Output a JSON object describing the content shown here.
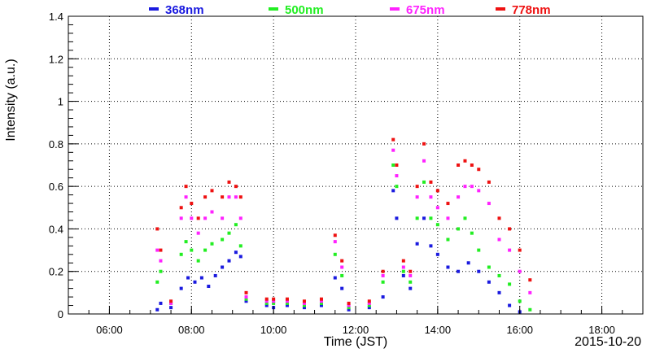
{
  "chart_data": {
    "type": "scatter",
    "title": "",
    "xlabel": "Time (JST)",
    "ylabel": "Intensity (a.u.)",
    "date_label": "2015-10-20",
    "xlim": [
      "05:00",
      "19:00"
    ],
    "ylim": [
      0,
      1.4
    ],
    "x_ticks": [
      "06:00",
      "08:00",
      "10:00",
      "12:00",
      "14:00",
      "16:00",
      "18:00"
    ],
    "y_ticks": [
      "0",
      "0.2",
      "0.4",
      "0.6",
      "0.8",
      "1",
      "1.2",
      "1.4"
    ],
    "grid": true,
    "legend_position": "top",
    "series": [
      {
        "name": "368nm",
        "color": "#1a1adf",
        "points": [
          [
            "07:10",
            0.02
          ],
          [
            "07:15",
            0.05
          ],
          [
            "07:30",
            0.03
          ],
          [
            "07:45",
            0.12
          ],
          [
            "07:55",
            0.17
          ],
          [
            "08:05",
            0.15
          ],
          [
            "08:15",
            0.17
          ],
          [
            "08:25",
            0.13
          ],
          [
            "08:35",
            0.18
          ],
          [
            "08:45",
            0.22
          ],
          [
            "08:55",
            0.25
          ],
          [
            "09:05",
            0.29
          ],
          [
            "09:12",
            0.27
          ],
          [
            "09:20",
            0.06
          ],
          [
            "09:50",
            0.04
          ],
          [
            "10:00",
            0.03
          ],
          [
            "10:20",
            0.04
          ],
          [
            "10:45",
            0.03
          ],
          [
            "11:10",
            0.04
          ],
          [
            "11:30",
            0.17
          ],
          [
            "11:40",
            0.12
          ],
          [
            "11:50",
            0.02
          ],
          [
            "12:20",
            0.03
          ],
          [
            "12:40",
            0.08
          ],
          [
            "12:55",
            0.58
          ],
          [
            "13:00",
            0.45
          ],
          [
            "13:10",
            0.18
          ],
          [
            "13:20",
            0.12
          ],
          [
            "13:30",
            0.33
          ],
          [
            "13:40",
            0.45
          ],
          [
            "13:50",
            0.32
          ],
          [
            "14:00",
            0.28
          ],
          [
            "14:15",
            0.22
          ],
          [
            "14:30",
            0.2
          ],
          [
            "14:45",
            0.24
          ],
          [
            "15:00",
            0.2
          ],
          [
            "15:15",
            0.15
          ],
          [
            "15:30",
            0.1
          ],
          [
            "15:45",
            0.04
          ],
          [
            "16:00",
            0.01
          ]
        ]
      },
      {
        "name": "500nm",
        "color": "#22ee22",
        "points": [
          [
            "07:10",
            0.15
          ],
          [
            "07:15",
            0.2
          ],
          [
            "07:30",
            0.05
          ],
          [
            "07:45",
            0.28
          ],
          [
            "07:52",
            0.34
          ],
          [
            "08:00",
            0.3
          ],
          [
            "08:10",
            0.25
          ],
          [
            "08:20",
            0.3
          ],
          [
            "08:30",
            0.33
          ],
          [
            "08:45",
            0.35
          ],
          [
            "08:55",
            0.38
          ],
          [
            "09:05",
            0.42
          ],
          [
            "09:12",
            0.32
          ],
          [
            "09:20",
            0.07
          ],
          [
            "09:50",
            0.05
          ],
          [
            "10:00",
            0.05
          ],
          [
            "10:20",
            0.05
          ],
          [
            "10:45",
            0.04
          ],
          [
            "11:10",
            0.05
          ],
          [
            "11:30",
            0.28
          ],
          [
            "11:40",
            0.18
          ],
          [
            "11:50",
            0.03
          ],
          [
            "12:20",
            0.04
          ],
          [
            "12:40",
            0.15
          ],
          [
            "12:55",
            0.7
          ],
          [
            "13:00",
            0.6
          ],
          [
            "13:10",
            0.2
          ],
          [
            "13:20",
            0.15
          ],
          [
            "13:30",
            0.45
          ],
          [
            "13:40",
            0.62
          ],
          [
            "13:50",
            0.45
          ],
          [
            "14:00",
            0.42
          ],
          [
            "14:15",
            0.35
          ],
          [
            "14:30",
            0.4
          ],
          [
            "14:40",
            0.45
          ],
          [
            "14:50",
            0.38
          ],
          [
            "15:00",
            0.3
          ],
          [
            "15:15",
            0.22
          ],
          [
            "15:30",
            0.18
          ],
          [
            "15:45",
            0.14
          ],
          [
            "16:00",
            0.06
          ],
          [
            "16:15",
            0.02
          ]
        ]
      },
      {
        "name": "675nm",
        "color": "#ff22ff",
        "points": [
          [
            "07:10",
            0.3
          ],
          [
            "07:15",
            0.25
          ],
          [
            "07:30",
            0.05
          ],
          [
            "07:45",
            0.45
          ],
          [
            "07:52",
            0.55
          ],
          [
            "08:00",
            0.45
          ],
          [
            "08:10",
            0.38
          ],
          [
            "08:20",
            0.45
          ],
          [
            "08:30",
            0.48
          ],
          [
            "08:45",
            0.45
          ],
          [
            "08:55",
            0.55
          ],
          [
            "09:05",
            0.55
          ],
          [
            "09:12",
            0.45
          ],
          [
            "09:20",
            0.08
          ],
          [
            "09:50",
            0.06
          ],
          [
            "10:00",
            0.06
          ],
          [
            "10:20",
            0.06
          ],
          [
            "10:45",
            0.05
          ],
          [
            "11:10",
            0.06
          ],
          [
            "11:30",
            0.34
          ],
          [
            "11:40",
            0.22
          ],
          [
            "11:50",
            0.04
          ],
          [
            "12:20",
            0.05
          ],
          [
            "12:40",
            0.18
          ],
          [
            "12:55",
            0.77
          ],
          [
            "13:00",
            0.65
          ],
          [
            "13:10",
            0.22
          ],
          [
            "13:20",
            0.18
          ],
          [
            "13:30",
            0.55
          ],
          [
            "13:40",
            0.72
          ],
          [
            "13:50",
            0.55
          ],
          [
            "14:00",
            0.5
          ],
          [
            "14:15",
            0.45
          ],
          [
            "14:30",
            0.55
          ],
          [
            "14:40",
            0.6
          ],
          [
            "14:50",
            0.6
          ],
          [
            "15:00",
            0.58
          ],
          [
            "15:15",
            0.52
          ],
          [
            "15:30",
            0.35
          ],
          [
            "15:45",
            0.3
          ],
          [
            "16:00",
            0.2
          ],
          [
            "16:15",
            0.1
          ]
        ]
      },
      {
        "name": "778nm",
        "color": "#ee1111",
        "points": [
          [
            "07:10",
            0.4
          ],
          [
            "07:15",
            0.3
          ],
          [
            "07:30",
            0.06
          ],
          [
            "07:45",
            0.5
          ],
          [
            "07:52",
            0.6
          ],
          [
            "08:00",
            0.52
          ],
          [
            "08:10",
            0.45
          ],
          [
            "08:20",
            0.55
          ],
          [
            "08:30",
            0.58
          ],
          [
            "08:45",
            0.55
          ],
          [
            "08:55",
            0.62
          ],
          [
            "09:05",
            0.6
          ],
          [
            "09:12",
            0.55
          ],
          [
            "09:20",
            0.1
          ],
          [
            "09:50",
            0.07
          ],
          [
            "10:00",
            0.07
          ],
          [
            "10:20",
            0.07
          ],
          [
            "10:45",
            0.06
          ],
          [
            "11:10",
            0.07
          ],
          [
            "11:30",
            0.37
          ],
          [
            "11:40",
            0.25
          ],
          [
            "11:50",
            0.05
          ],
          [
            "12:20",
            0.06
          ],
          [
            "12:40",
            0.2
          ],
          [
            "12:55",
            0.82
          ],
          [
            "13:00",
            0.7
          ],
          [
            "13:10",
            0.25
          ],
          [
            "13:20",
            0.2
          ],
          [
            "13:30",
            0.6
          ],
          [
            "13:40",
            0.8
          ],
          [
            "13:50",
            0.62
          ],
          [
            "14:00",
            0.58
          ],
          [
            "14:15",
            0.52
          ],
          [
            "14:30",
            0.7
          ],
          [
            "14:40",
            0.72
          ],
          [
            "14:50",
            0.7
          ],
          [
            "15:00",
            0.68
          ],
          [
            "15:15",
            0.62
          ],
          [
            "15:30",
            0.45
          ],
          [
            "15:45",
            0.4
          ],
          [
            "16:00",
            0.3
          ],
          [
            "16:15",
            0.16
          ]
        ]
      }
    ]
  }
}
